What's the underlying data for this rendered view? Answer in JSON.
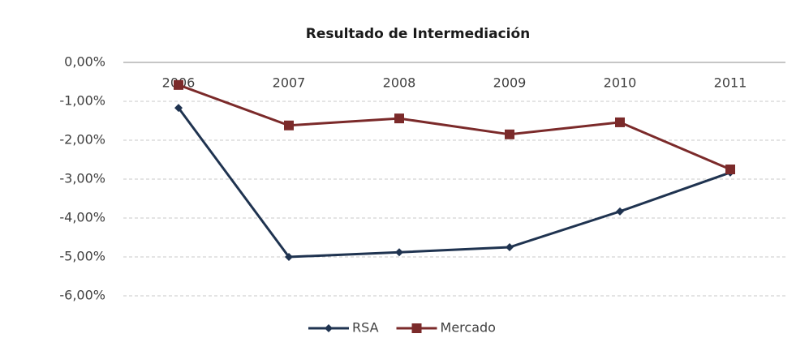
{
  "chart_data": {
    "type": "line",
    "title": "Resultado de Intermediación",
    "categories": [
      "2006",
      "2007",
      "2008",
      "2009",
      "2010",
      "2011"
    ],
    "series": [
      {
        "name": "RSA",
        "color": "#1f3350",
        "marker": "diamond",
        "values": [
          -1.17,
          -5.0,
          -4.88,
          -4.75,
          -3.83,
          -2.83
        ]
      },
      {
        "name": "Mercado",
        "color": "#7b2a2a",
        "marker": "square",
        "values": [
          -0.58,
          -1.62,
          -1.44,
          -1.85,
          -1.54,
          -2.75
        ]
      }
    ],
    "ylim": [
      -6,
      0
    ],
    "yticks": [
      {
        "value": 0,
        "label": "0,00%"
      },
      {
        "value": -1,
        "label": "-1,00%"
      },
      {
        "value": -2,
        "label": "-2,00%"
      },
      {
        "value": -3,
        "label": "-3,00%"
      },
      {
        "value": -4,
        "label": "-4,00%"
      },
      {
        "value": -5,
        "label": "-5,00%"
      },
      {
        "value": -6,
        "label": "-6,00%"
      }
    ],
    "grid": true,
    "legend": "bottom"
  }
}
